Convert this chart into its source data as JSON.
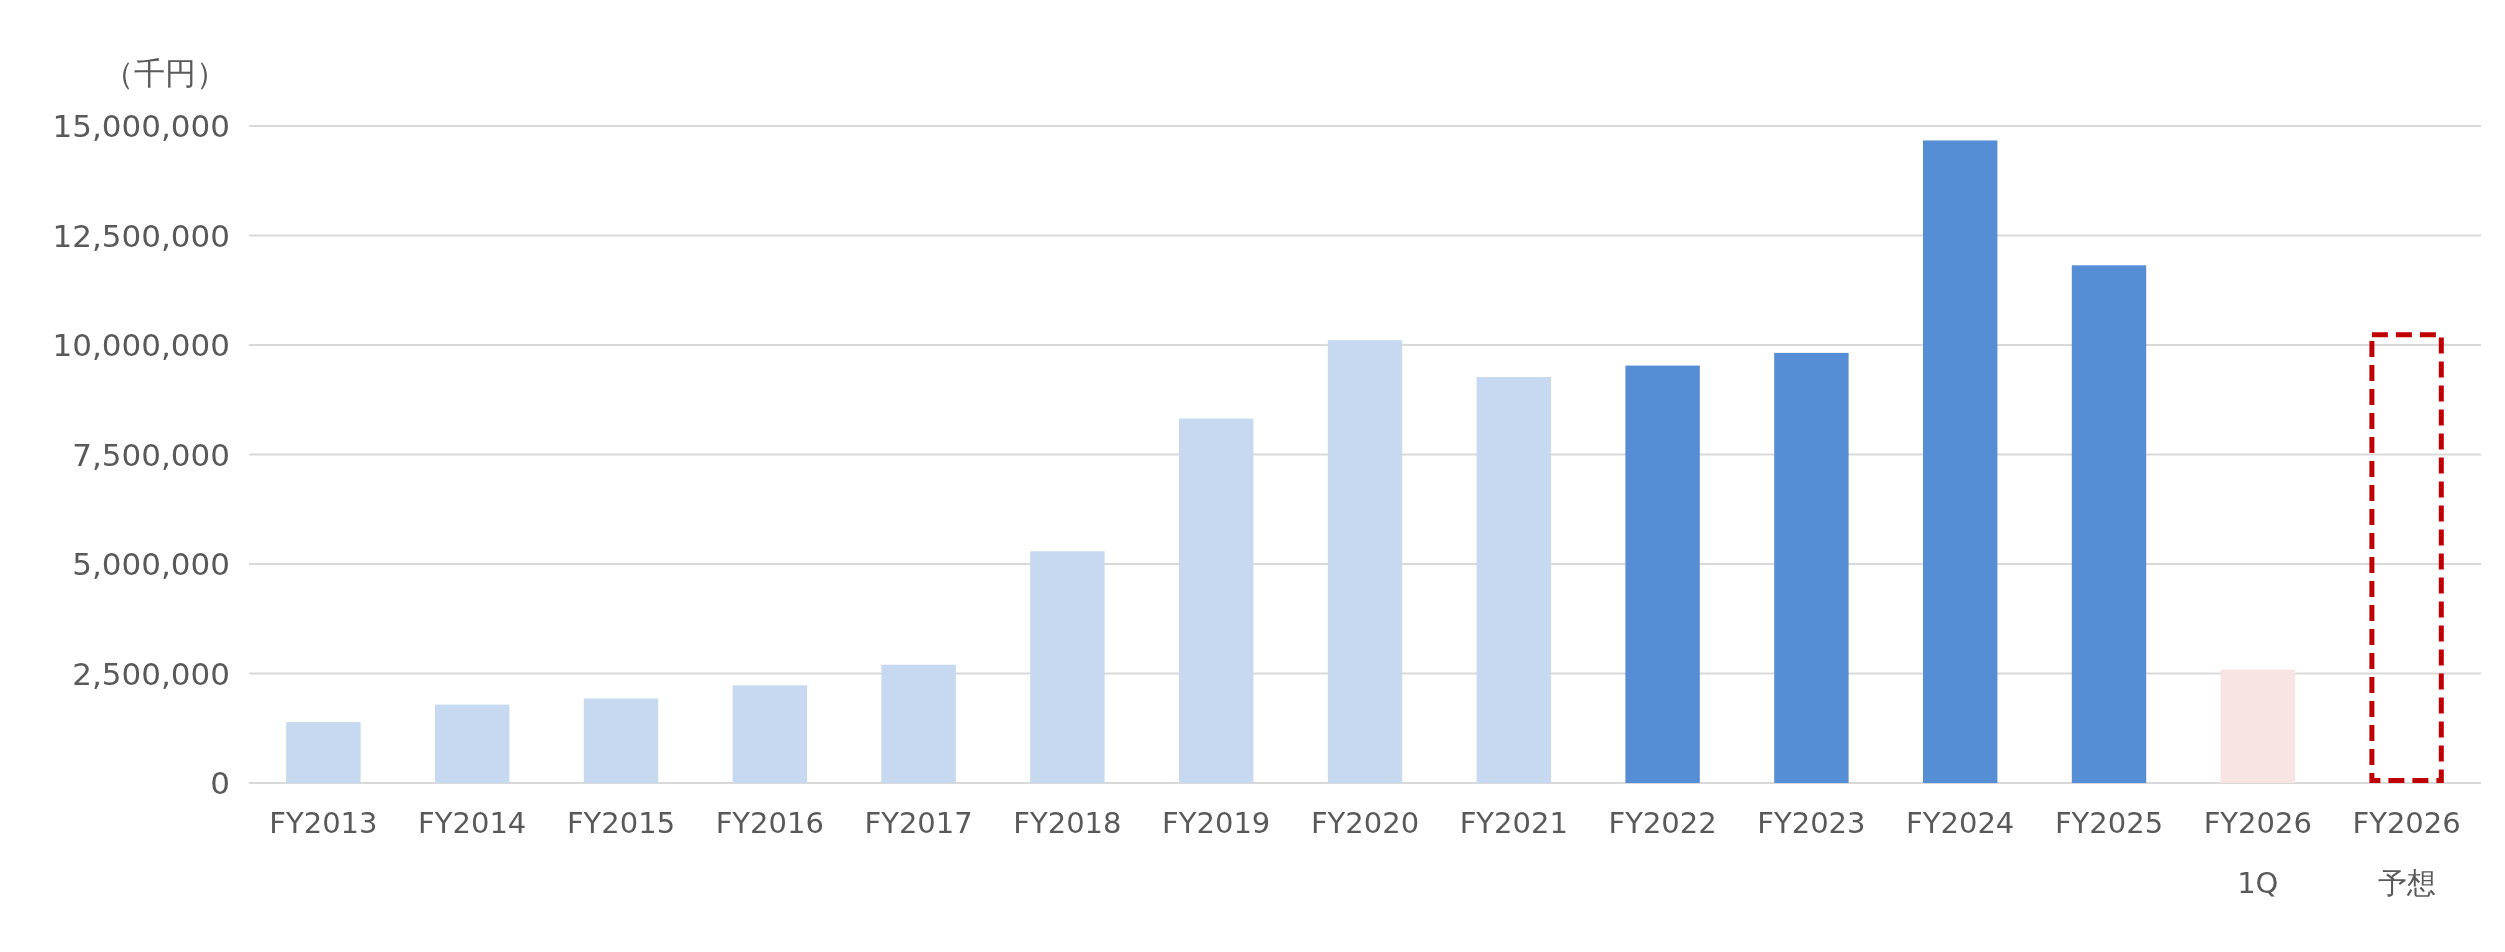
{
  "chart_data": {
    "type": "bar",
    "stacked": true,
    "ylabel": "（千円）",
    "categories": [
      "FY2013",
      "FY2014",
      "FY2015",
      "FY2016",
      "FY2017",
      "FY2018",
      "FY2019",
      "FY2020",
      "FY2021",
      "FY2022",
      "FY2023",
      "FY2024",
      "FY2025",
      "FY2026\n1Q",
      "FY2026\n予想"
    ],
    "series": [
      {
        "values": [
          1390000,
          1790000,
          1930000,
          2230000,
          2700000,
          5290000,
          8320000,
          10110000,
          9270000,
          9530000,
          9820000,
          14670000,
          11820000,
          2590000,
          null
        ],
        "colors": [
          "#c6d9f1",
          "#c6d9f1",
          "#c6d9f1",
          "#c6d9f1",
          "#c6d9f1",
          "#c6d9f1",
          "#c6d9f1",
          "#c6d9f1",
          "#c6d9f1",
          "#558ed5",
          "#558ed5",
          "#558ed5",
          "#558ed5",
          "#f9e4e4",
          null
        ]
      },
      {
        "values": [
          null,
          null,
          null,
          null,
          null,
          null,
          null,
          null,
          null,
          null,
          null,
          null,
          null,
          null,
          10290000
        ],
        "color": "#c00000",
        "line_style": "dashed"
      }
    ],
    "ylim": [
      0,
      15000000
    ],
    "yticks": [
      {
        "value": 0,
        "label": "0"
      },
      {
        "value": 2500000,
        "label": "2,500,000"
      },
      {
        "value": 5000000,
        "label": "5,000,000"
      },
      {
        "value": 7500000,
        "label": "7,500,000"
      },
      {
        "value": 10000000,
        "label": "10,000,000"
      },
      {
        "value": 12500000,
        "label": "12,500,000"
      },
      {
        "value": 15000000,
        "label": "15,000,000"
      }
    ],
    "grid": "y"
  }
}
